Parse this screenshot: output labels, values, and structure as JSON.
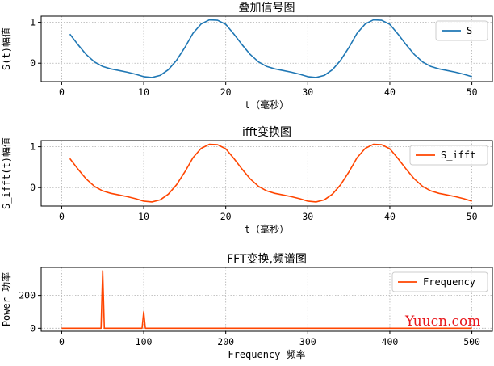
{
  "chart_data": [
    {
      "type": "line",
      "title": "叠加信号图",
      "xlabel": "t（毫秒）",
      "ylabel": "S(t)幅值",
      "xlim": [
        -2.5,
        52.5
      ],
      "ylim": [
        -0.45,
        1.15
      ],
      "xticks": [
        0,
        10,
        20,
        30,
        40,
        50
      ],
      "yticks": [
        0,
        1
      ],
      "grid": true,
      "legend": "upper right",
      "series": [
        {
          "name": "S",
          "color": "#1f77b4",
          "x": [
            1,
            2,
            3,
            4,
            5,
            6,
            7,
            8,
            9,
            10,
            11,
            12,
            13,
            14,
            15,
            16,
            17,
            18,
            19,
            20,
            21,
            22,
            23,
            24,
            25,
            26,
            27,
            28,
            29,
            30,
            31,
            32,
            33,
            34,
            35,
            36,
            37,
            38,
            39,
            40,
            41,
            42,
            43,
            44,
            45,
            46,
            47,
            48,
            49,
            50
          ],
          "y": [
            0.71,
            0.45,
            0.21,
            0.03,
            -0.08,
            -0.14,
            -0.18,
            -0.22,
            -0.27,
            -0.33,
            -0.35,
            -0.3,
            -0.16,
            0.07,
            0.38,
            0.73,
            0.96,
            1.06,
            1.05,
            0.95,
            0.71,
            0.45,
            0.21,
            0.03,
            -0.08,
            -0.14,
            -0.18,
            -0.22,
            -0.27,
            -0.33,
            -0.35,
            -0.3,
            -0.16,
            0.07,
            0.38,
            0.73,
            0.96,
            1.06,
            1.05,
            0.95,
            0.71,
            0.45,
            0.21,
            0.03,
            -0.08,
            -0.14,
            -0.18,
            -0.22,
            -0.27,
            -0.33
          ]
        }
      ]
    },
    {
      "type": "line",
      "title": "ifft变换图",
      "xlabel": "t（毫秒）",
      "ylabel": "S_ifft(t)幅值",
      "xlim": [
        -2.5,
        52.5
      ],
      "ylim": [
        -0.45,
        1.15
      ],
      "xticks": [
        0,
        10,
        20,
        30,
        40,
        50
      ],
      "yticks": [
        0,
        1
      ],
      "grid": true,
      "legend": "upper right",
      "series": [
        {
          "name": "S_ifft",
          "color": "#ff4500",
          "x": [
            1,
            2,
            3,
            4,
            5,
            6,
            7,
            8,
            9,
            10,
            11,
            12,
            13,
            14,
            15,
            16,
            17,
            18,
            19,
            20,
            21,
            22,
            23,
            24,
            25,
            26,
            27,
            28,
            29,
            30,
            31,
            32,
            33,
            34,
            35,
            36,
            37,
            38,
            39,
            40,
            41,
            42,
            43,
            44,
            45,
            46,
            47,
            48,
            49,
            50
          ],
          "y": [
            0.71,
            0.45,
            0.21,
            0.03,
            -0.08,
            -0.14,
            -0.18,
            -0.22,
            -0.27,
            -0.33,
            -0.35,
            -0.3,
            -0.16,
            0.07,
            0.38,
            0.73,
            0.96,
            1.06,
            1.05,
            0.95,
            0.71,
            0.45,
            0.21,
            0.03,
            -0.08,
            -0.14,
            -0.18,
            -0.22,
            -0.27,
            -0.33,
            -0.35,
            -0.3,
            -0.16,
            0.07,
            0.38,
            0.73,
            0.96,
            1.06,
            1.05,
            0.95,
            0.71,
            0.45,
            0.21,
            0.03,
            -0.08,
            -0.14,
            -0.18,
            -0.22,
            -0.27,
            -0.33
          ]
        }
      ]
    },
    {
      "type": "line",
      "title": "FFT变换,频谱图",
      "xlabel": "Frequency 频率",
      "ylabel": "Power 功率",
      "xlim": [
        -25,
        525
      ],
      "ylim": [
        -18,
        370
      ],
      "xticks": [
        0,
        100,
        200,
        300,
        400,
        500
      ],
      "yticks": [
        0,
        200
      ],
      "grid": true,
      "legend": "upper right",
      "series": [
        {
          "name": "Frequency",
          "color": "#ff4500",
          "x": [
            0,
            40,
            48,
            50,
            52,
            60,
            90,
            98,
            100,
            102,
            110,
            500
          ],
          "y": [
            0,
            0,
            0,
            350,
            0,
            0,
            0,
            0,
            100,
            0,
            0,
            0
          ]
        }
      ]
    }
  ],
  "watermark": "Yuucn.com"
}
